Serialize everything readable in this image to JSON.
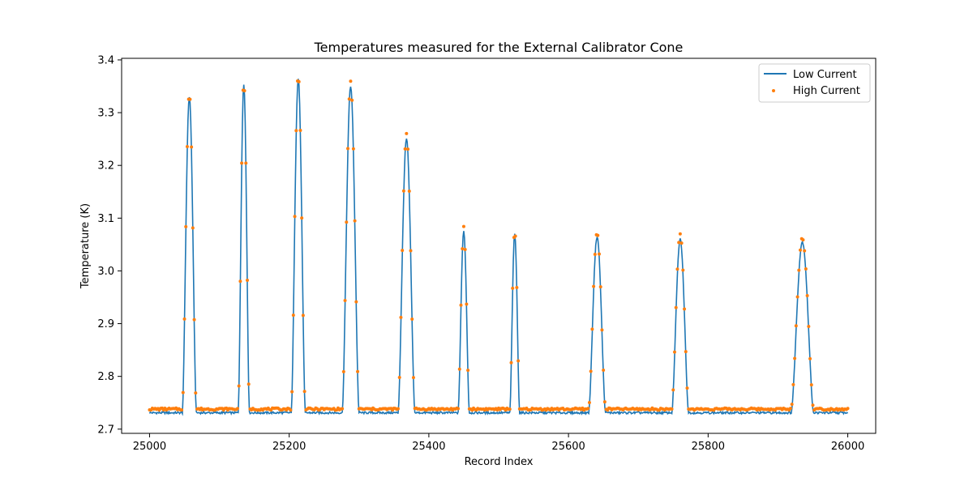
{
  "chart_data": {
    "type": "line",
    "title": "Temperatures measured for the External Calibrator Cone",
    "xlabel": "Record Index",
    "ylabel": "Temperature (K)",
    "xlim": [
      24960,
      26040
    ],
    "ylim": [
      2.692,
      3.403
    ],
    "x_ticks": [
      25000,
      25200,
      25400,
      25600,
      25800,
      26000
    ],
    "y_ticks": [
      2.7,
      2.8,
      2.9,
      3.0,
      3.1,
      3.2,
      3.3,
      3.4
    ],
    "grid": false,
    "legend_position": "top-right",
    "series": [
      {
        "name": "Low Current",
        "style": "line",
        "color": "#1f77b4",
        "baseline": 2.731,
        "peaks": [
          {
            "center": 25057,
            "peak": 3.33,
            "half_width": 10
          },
          {
            "center": 25135,
            "peak": 3.355,
            "half_width": 8
          },
          {
            "center": 25213,
            "peak": 3.365,
            "half_width": 10
          },
          {
            "center": 25288,
            "peak": 3.35,
            "half_width": 12
          },
          {
            "center": 25368,
            "peak": 3.25,
            "half_width": 12
          },
          {
            "center": 25450,
            "peak": 3.075,
            "half_width": 8
          },
          {
            "center": 25523,
            "peak": 3.07,
            "half_width": 7
          },
          {
            "center": 25641,
            "peak": 3.065,
            "half_width": 12
          },
          {
            "center": 25760,
            "peak": 3.06,
            "half_width": 12
          },
          {
            "center": 25935,
            "peak": 3.055,
            "half_width": 16
          }
        ]
      },
      {
        "name": "High Current",
        "style": "scatter",
        "color": "#ff7f0e",
        "baseline": 2.738,
        "peaks": [
          {
            "center": 25057,
            "peak": 3.338,
            "half_width": 10
          },
          {
            "center": 25135,
            "peak": 3.362,
            "half_width": 8
          },
          {
            "center": 25213,
            "peak": 3.372,
            "half_width": 10
          },
          {
            "center": 25288,
            "peak": 3.358,
            "half_width": 12
          },
          {
            "center": 25368,
            "peak": 3.26,
            "half_width": 12
          },
          {
            "center": 25450,
            "peak": 3.083,
            "half_width": 8
          },
          {
            "center": 25523,
            "peak": 3.078,
            "half_width": 7
          },
          {
            "center": 25641,
            "peak": 3.073,
            "half_width": 12
          },
          {
            "center": 25760,
            "peak": 3.07,
            "half_width": 12
          },
          {
            "center": 25935,
            "peak": 3.062,
            "half_width": 16
          }
        ]
      }
    ]
  }
}
